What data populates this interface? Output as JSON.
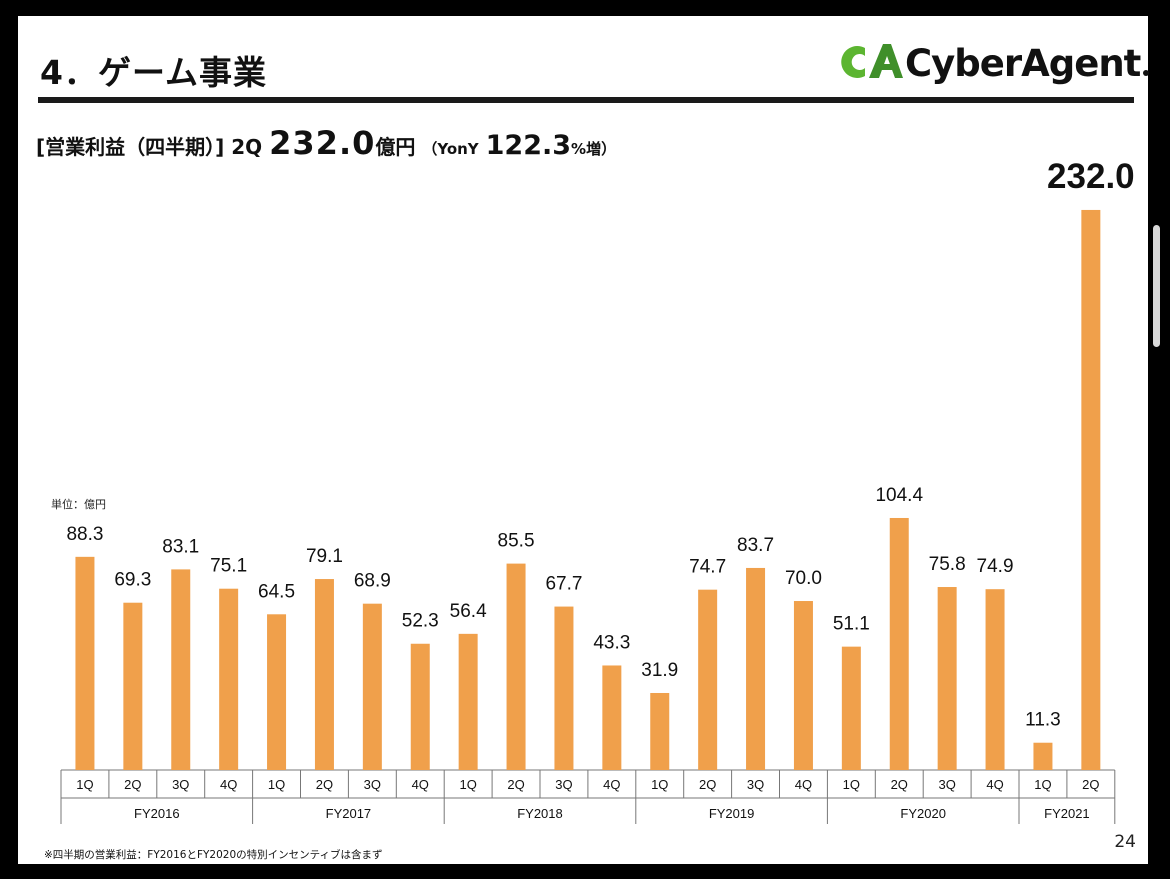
{
  "header": {
    "section_title": "4．ゲーム事業",
    "logo_text": "CyberAgent",
    "logo_mark_text": "CA"
  },
  "subtitle": {
    "label": "[営業利益（四半期）]",
    "quarter": "2Q",
    "value": "232.0",
    "unit": "億円",
    "yoy_prefix": "（YonY",
    "yoy_value": "122.3",
    "yoy_suffix": "%増）"
  },
  "unit_label": "単位：億円",
  "footnote": "※四半期の営業利益：FY2016とFY2020の特別インセンティブは含まず",
  "page_number": "24",
  "colors": {
    "bar": "#f0a04b",
    "logo_green": "#5cb531",
    "logo_dark_green": "#3f8f2a"
  },
  "chart_data": {
    "type": "bar",
    "title": "[営業利益（四半期）]",
    "ylabel": "単位：億円",
    "ylim": [
      0,
      240
    ],
    "grid": false,
    "categories": [
      "1Q",
      "2Q",
      "3Q",
      "4Q",
      "1Q",
      "2Q",
      "3Q",
      "4Q",
      "1Q",
      "2Q",
      "3Q",
      "4Q",
      "1Q",
      "2Q",
      "3Q",
      "4Q",
      "1Q",
      "2Q",
      "3Q",
      "4Q",
      "1Q",
      "2Q"
    ],
    "groups": [
      {
        "label": "FY2016",
        "count": 4
      },
      {
        "label": "FY2017",
        "count": 4
      },
      {
        "label": "FY2018",
        "count": 4
      },
      {
        "label": "FY2019",
        "count": 4
      },
      {
        "label": "FY2020",
        "count": 4
      },
      {
        "label": "FY2021",
        "count": 2
      }
    ],
    "values": [
      88.3,
      69.3,
      83.1,
      75.1,
      64.5,
      79.1,
      68.9,
      52.3,
      56.4,
      85.5,
      67.7,
      43.3,
      31.9,
      74.7,
      83.7,
      70.0,
      51.1,
      104.4,
      75.8,
      74.9,
      11.3,
      232.0
    ],
    "value_labels": [
      "88.3",
      "69.3",
      "83.1",
      "75.1",
      "64.5",
      "79.1",
      "68.9",
      "52.3",
      "56.4",
      "85.5",
      "67.7",
      "43.3",
      "31.9",
      "74.7",
      "83.7",
      "70.0",
      "51.1",
      "104.4",
      "75.8",
      "74.9",
      "11.3",
      "232.0"
    ]
  }
}
